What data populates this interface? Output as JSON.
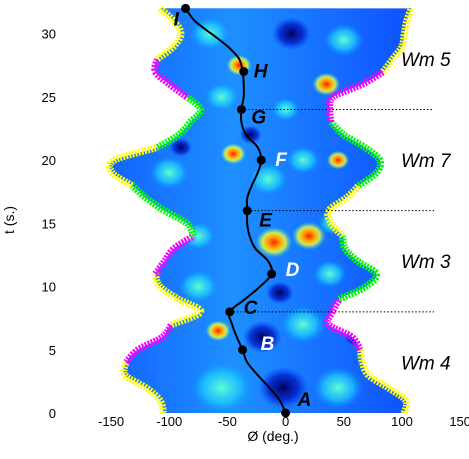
{
  "chart_data": {
    "type": "heatmap",
    "xlabel": "Ø (deg.)",
    "ylabel": "t (s.)",
    "xlim": [
      -175,
      155
    ],
    "ylim": [
      0,
      32.5
    ],
    "x_ticks": [
      -150,
      -100,
      -50,
      0,
      50,
      100,
      150
    ],
    "y_ticks": [
      0,
      5,
      10,
      15,
      20,
      25,
      30
    ],
    "x_tick_labels": [
      "-150",
      "-100",
      "-50",
      "0",
      "50",
      "100",
      "150"
    ],
    "y_tick_labels": [
      "0",
      "5",
      "10",
      "15",
      "20",
      "25",
      "30"
    ],
    "grid": false,
    "trajectory": {
      "t": [
        0,
        1,
        2,
        3,
        4,
        5,
        6,
        7,
        8,
        9,
        10,
        11,
        12,
        13,
        14,
        15,
        16,
        17,
        18,
        19,
        20,
        21,
        22,
        23,
        24,
        25,
        26,
        27,
        28,
        29,
        30,
        31,
        32
      ],
      "phi": [
        0,
        -5,
        -14,
        -24,
        -33,
        -37,
        -42,
        -46,
        -48,
        -35,
        -22,
        -12,
        -15,
        -26,
        -31,
        -33,
        -33,
        -33,
        -29,
        -24,
        -21,
        -24,
        -34,
        -38,
        -38,
        -36,
        -36,
        -37,
        -40,
        -50,
        -64,
        -78,
        -86
      ]
    },
    "points": [
      {
        "label": "A",
        "phi": 0,
        "t": 0
      },
      {
        "label": "B",
        "phi": -37,
        "t": 5
      },
      {
        "label": "C",
        "phi": -48,
        "t": 8
      },
      {
        "label": "D",
        "phi": -12,
        "t": 11
      },
      {
        "label": "E",
        "phi": -33,
        "t": 16
      },
      {
        "label": "F",
        "phi": -21,
        "t": 20
      },
      {
        "label": "G",
        "phi": -38,
        "t": 24
      },
      {
        "label": "H",
        "phi": -36,
        "t": 27
      },
      {
        "label": "I",
        "phi": -86,
        "t": 32
      }
    ],
    "mode_separators_t": [
      8,
      16,
      24
    ],
    "mode_labels": [
      {
        "text": "Wm 4",
        "t": 4
      },
      {
        "text": "Wm 3",
        "t": 12
      },
      {
        "text": "Wm 7",
        "t": 20
      },
      {
        "text": "Wm 5",
        "t": 28
      }
    ],
    "envelope": {
      "t": [
        0,
        1,
        2,
        3,
        4,
        5,
        6,
        7,
        8,
        9,
        10,
        11,
        12,
        13,
        14,
        15,
        16,
        17,
        18,
        19,
        20,
        21,
        22,
        23,
        24,
        25,
        26,
        27,
        28,
        29,
        30,
        31,
        32
      ],
      "left": [
        -105,
        -108,
        -120,
        -138,
        -137,
        -127,
        -106,
        -98,
        -73,
        -92,
        -108,
        -112,
        -104,
        -96,
        -79,
        -85,
        -104,
        -120,
        -132,
        -149,
        -147,
        -110,
        -92,
        -82,
        -73,
        -85,
        -100,
        -112,
        -110,
        -96,
        -90,
        -96,
        -108
      ],
      "right": [
        102,
        103,
        88,
        71,
        66,
        64,
        57,
        37,
        40,
        46,
        69,
        78,
        62,
        51,
        49,
        39,
        37,
        52,
        63,
        78,
        81,
        68,
        50,
        39,
        38,
        41,
        66,
        84,
        92,
        100,
        102,
        104,
        108
      ]
    },
    "colors": {
      "left_edge_segments": [
        "#ffff00",
        "#ff00ff",
        "#ffff00",
        "#ff00ff",
        "#00ff00",
        "#ffff00",
        "#00ff00",
        "#ff00ff",
        "#ffff00"
      ],
      "right_edge_segments": [
        "#ffff00",
        "#ff00ff",
        "#00ff00",
        "#ffff00",
        "#00ff00",
        "#ff00ff",
        "#ffff00"
      ],
      "trajectory": "#000000"
    }
  }
}
